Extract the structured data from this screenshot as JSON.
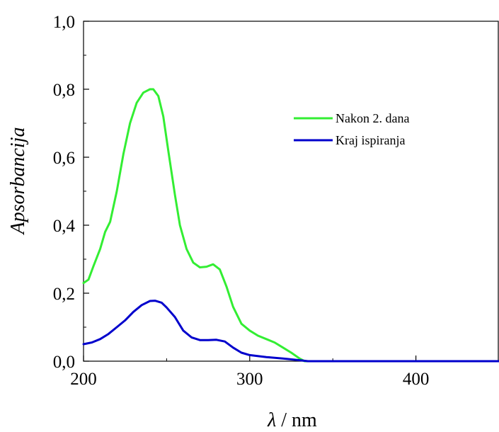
{
  "chart_data": {
    "type": "line",
    "title": "",
    "xlabel": "λ / nm",
    "xlabel_symbol": "λ",
    "xlabel_unit": " / nm",
    "ylabel": "Apsorbancija",
    "xlim": [
      200,
      450
    ],
    "ylim": [
      0.0,
      1.0
    ],
    "x_ticks": [
      200,
      300,
      400
    ],
    "x_tick_labels": [
      "200",
      "300",
      "400"
    ],
    "y_ticks": [
      0.0,
      0.2,
      0.4,
      0.6,
      0.8,
      1.0
    ],
    "y_tick_labels": [
      "0,0",
      "0,2",
      "0,4",
      "0,6",
      "0,8",
      "1,0"
    ],
    "grid": false,
    "legend_position": "top-right",
    "series": [
      {
        "name": "Nakon 2. dana",
        "color": "#33ee33",
        "x": [
          200,
          203,
          206,
          210,
          213,
          216,
          220,
          224,
          228,
          232,
          236,
          240,
          242,
          245,
          248,
          251,
          255,
          258,
          262,
          266,
          270,
          274,
          278,
          282,
          286,
          290,
          295,
          300,
          305,
          310,
          315,
          320,
          325,
          330,
          333,
          340,
          360,
          380,
          400,
          420,
          450
        ],
        "values": [
          0.23,
          0.24,
          0.28,
          0.33,
          0.38,
          0.41,
          0.5,
          0.61,
          0.7,
          0.76,
          0.79,
          0.8,
          0.8,
          0.78,
          0.72,
          0.62,
          0.49,
          0.4,
          0.33,
          0.29,
          0.276,
          0.278,
          0.285,
          0.27,
          0.22,
          0.16,
          0.11,
          0.09,
          0.075,
          0.065,
          0.055,
          0.04,
          0.025,
          0.008,
          0.0,
          0.0,
          0.0,
          0.0,
          0.0,
          0.0,
          0.0
        ]
      },
      {
        "name": "Kraj ispiranja",
        "color": "#0000cc",
        "x": [
          200,
          205,
          210,
          215,
          220,
          225,
          230,
          235,
          240,
          243,
          247,
          250,
          255,
          260,
          265,
          270,
          275,
          280,
          285,
          290,
          295,
          300,
          310,
          320,
          330,
          335,
          350,
          400,
          450
        ],
        "values": [
          0.05,
          0.055,
          0.065,
          0.08,
          0.1,
          0.12,
          0.145,
          0.165,
          0.177,
          0.178,
          0.172,
          0.158,
          0.13,
          0.09,
          0.07,
          0.062,
          0.062,
          0.063,
          0.058,
          0.04,
          0.025,
          0.018,
          0.012,
          0.008,
          0.003,
          0.0,
          0.0,
          0.0,
          0.0
        ]
      }
    ]
  }
}
